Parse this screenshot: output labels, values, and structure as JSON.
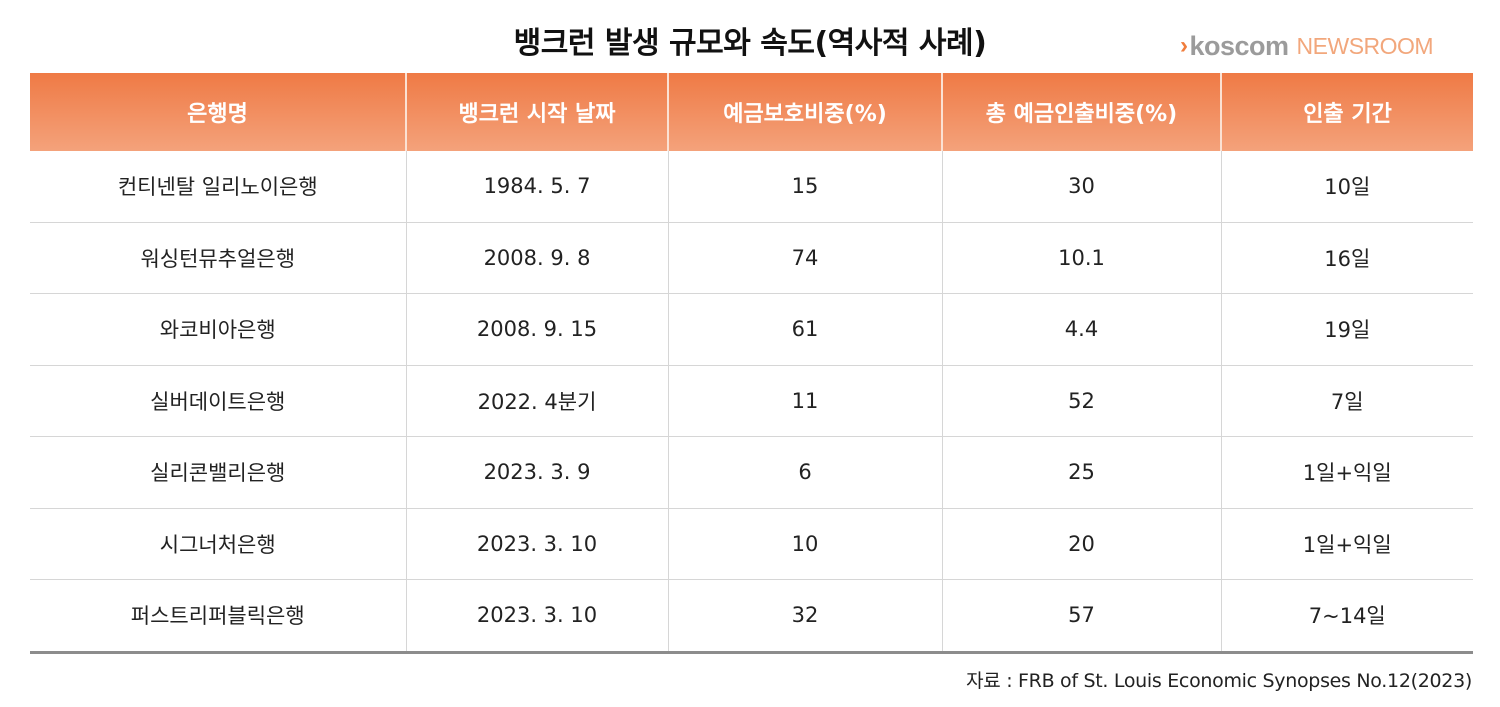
{
  "title": "뱅크런 발생 규모와 속도(역사적 사례)",
  "logo": {
    "chevron": "›",
    "brand": "koscom",
    "suffix": "NEWSROOM"
  },
  "table": {
    "headers": [
      "은행명",
      "뱅크런 시작 날짜",
      "예금보호비중(%)",
      "총 예금인출비중(%)",
      "인출 기간"
    ],
    "rows": [
      [
        "컨티넨탈 일리노이은행",
        "1984. 5. 7",
        "15",
        "30",
        "10일"
      ],
      [
        "워싱턴뮤추얼은행",
        "2008. 9. 8",
        "74",
        "10.1",
        "16일"
      ],
      [
        "와코비아은행",
        "2008. 9. 15",
        "61",
        "4.4",
        "19일"
      ],
      [
        "실버데이트은행",
        "2022. 4분기",
        "11",
        "52",
        "7일"
      ],
      [
        "실리콘밸리은행",
        "2023. 3. 9",
        "6",
        "25",
        "1일+익일"
      ],
      [
        "시그너처은행",
        "2023. 3. 10",
        "10",
        "20",
        "1일+익일"
      ],
      [
        "퍼스트리퍼블릭은행",
        "2023. 3. 10",
        "32",
        "57",
        "7~14일"
      ]
    ]
  },
  "source": "자료 : FRB of St. Louis Economic Synopses No.12(2023)",
  "colors": {
    "header_top": "#ef7a45",
    "header_bottom": "#f4a27b",
    "accent": "#f07d3c"
  }
}
